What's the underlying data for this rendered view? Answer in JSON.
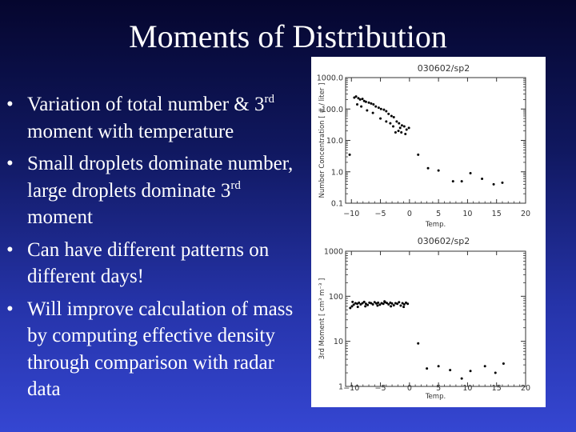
{
  "slide": {
    "title": "Moments of Distribution",
    "bullet_symbol": "•",
    "bullets": [
      {
        "parts": [
          "Variation of total number & ",
          "3",
          "rd",
          " moment with temperature"
        ]
      },
      {
        "parts": [
          "Small droplets dominate number, large droplets dominate ",
          "3",
          "rd",
          " moment"
        ]
      },
      {
        "parts": [
          "Can have different patterns on different days!"
        ]
      },
      {
        "parts": [
          "Will improve calculation of mass by computing effective density through comparison with radar data"
        ]
      }
    ]
  },
  "chart_data": [
    {
      "type": "scatter",
      "title": "030602/sp2",
      "xlabel": "Temp.",
      "ylabel": "Number Concentration [ # / liter ]",
      "xlim": [
        -11,
        20
      ],
      "ylim": [
        0.1,
        1000
      ],
      "yscale": "log",
      "xticks": [
        "−10",
        "−5",
        "0",
        "5",
        "10",
        "15",
        "20"
      ],
      "yticks": [
        "0.1",
        "1.0",
        "10.0",
        "100.0",
        "1000.0"
      ],
      "marker_color": "#000000",
      "points": [
        [
          -10.3,
          3.5
        ],
        [
          -9.5,
          230
        ],
        [
          -9.2,
          250
        ],
        [
          -8.8,
          220
        ],
        [
          -8.5,
          200
        ],
        [
          -8.1,
          210
        ],
        [
          -7.8,
          180
        ],
        [
          -7.5,
          170
        ],
        [
          -7.0,
          160
        ],
        [
          -6.6,
          150
        ],
        [
          -6.2,
          140
        ],
        [
          -5.8,
          120
        ],
        [
          -5.3,
          110
        ],
        [
          -4.9,
          100
        ],
        [
          -4.4,
          95
        ],
        [
          -4.0,
          85
        ],
        [
          -3.6,
          70
        ],
        [
          -3.1,
          60
        ],
        [
          -2.7,
          55
        ],
        [
          -2.2,
          40
        ],
        [
          -1.8,
          35
        ],
        [
          -1.3,
          30
        ],
        [
          -0.9,
          28
        ],
        [
          -0.5,
          22
        ],
        [
          -0.1,
          25
        ],
        [
          -9.0,
          140
        ],
        [
          -8.3,
          120
        ],
        [
          -7.3,
          90
        ],
        [
          -6.3,
          75
        ],
        [
          -5.0,
          50
        ],
        [
          -4.0,
          40
        ],
        [
          -3.3,
          35
        ],
        [
          -2.8,
          28
        ],
        [
          -1.9,
          20
        ],
        [
          -1.4,
          18
        ],
        [
          -0.7,
          16
        ],
        [
          -2.4,
          18
        ],
        [
          -1.6,
          25
        ],
        [
          1.5,
          3.5
        ],
        [
          3.2,
          1.3
        ],
        [
          5.0,
          1.1
        ],
        [
          7.5,
          0.5
        ],
        [
          9.0,
          0.5
        ],
        [
          10.5,
          0.9
        ],
        [
          12.5,
          0.6
        ],
        [
          14.5,
          0.4
        ],
        [
          16.0,
          0.45
        ]
      ]
    },
    {
      "type": "scatter",
      "title": "030602/sp2",
      "xlabel": "Temp.",
      "ylabel": "3rd Moment [ cm³ m⁻³ ]",
      "xlim": [
        -11,
        20
      ],
      "ylim": [
        1,
        1000
      ],
      "yscale": "log",
      "xticks": [
        "−10",
        "−5",
        "0",
        "5",
        "10",
        "15",
        "20"
      ],
      "yticks": [
        "1",
        "10",
        "100",
        "1000"
      ],
      "marker_color": "#000000",
      "points": [
        [
          -10.2,
          55
        ],
        [
          -9.9,
          60
        ],
        [
          -9.6,
          65
        ],
        [
          -9.3,
          70
        ],
        [
          -9.0,
          68
        ],
        [
          -8.7,
          72
        ],
        [
          -8.4,
          66
        ],
        [
          -8.1,
          70
        ],
        [
          -7.8,
          75
        ],
        [
          -7.5,
          68
        ],
        [
          -7.2,
          64
        ],
        [
          -6.9,
          72
        ],
        [
          -6.6,
          70
        ],
        [
          -6.3,
          66
        ],
        [
          -6.0,
          74
        ],
        [
          -5.7,
          69
        ],
        [
          -5.4,
          72
        ],
        [
          -5.1,
          65
        ],
        [
          -4.8,
          70
        ],
        [
          -4.5,
          68
        ],
        [
          -4.2,
          74
        ],
        [
          -3.9,
          71
        ],
        [
          -3.6,
          66
        ],
        [
          -3.3,
          72
        ],
        [
          -3.0,
          69
        ],
        [
          -2.7,
          63
        ],
        [
          -2.4,
          70
        ],
        [
          -2.1,
          68
        ],
        [
          -1.8,
          74
        ],
        [
          -1.5,
          62
        ],
        [
          -1.2,
          70
        ],
        [
          -0.9,
          66
        ],
        [
          -0.6,
          72
        ],
        [
          -0.3,
          68
        ],
        [
          -9.8,
          75
        ],
        [
          -7.6,
          60
        ],
        [
          -5.5,
          62
        ],
        [
          -3.2,
          60
        ],
        [
          -1.0,
          58
        ],
        [
          -8.9,
          58
        ],
        [
          -4.3,
          77
        ],
        [
          1.5,
          9.0
        ],
        [
          3.0,
          2.5
        ],
        [
          5.0,
          2.8
        ],
        [
          7.0,
          2.3
        ],
        [
          9.0,
          1.5
        ],
        [
          10.5,
          2.2
        ],
        [
          13.0,
          2.8
        ],
        [
          14.8,
          2.0
        ],
        [
          16.2,
          3.2
        ]
      ]
    }
  ]
}
